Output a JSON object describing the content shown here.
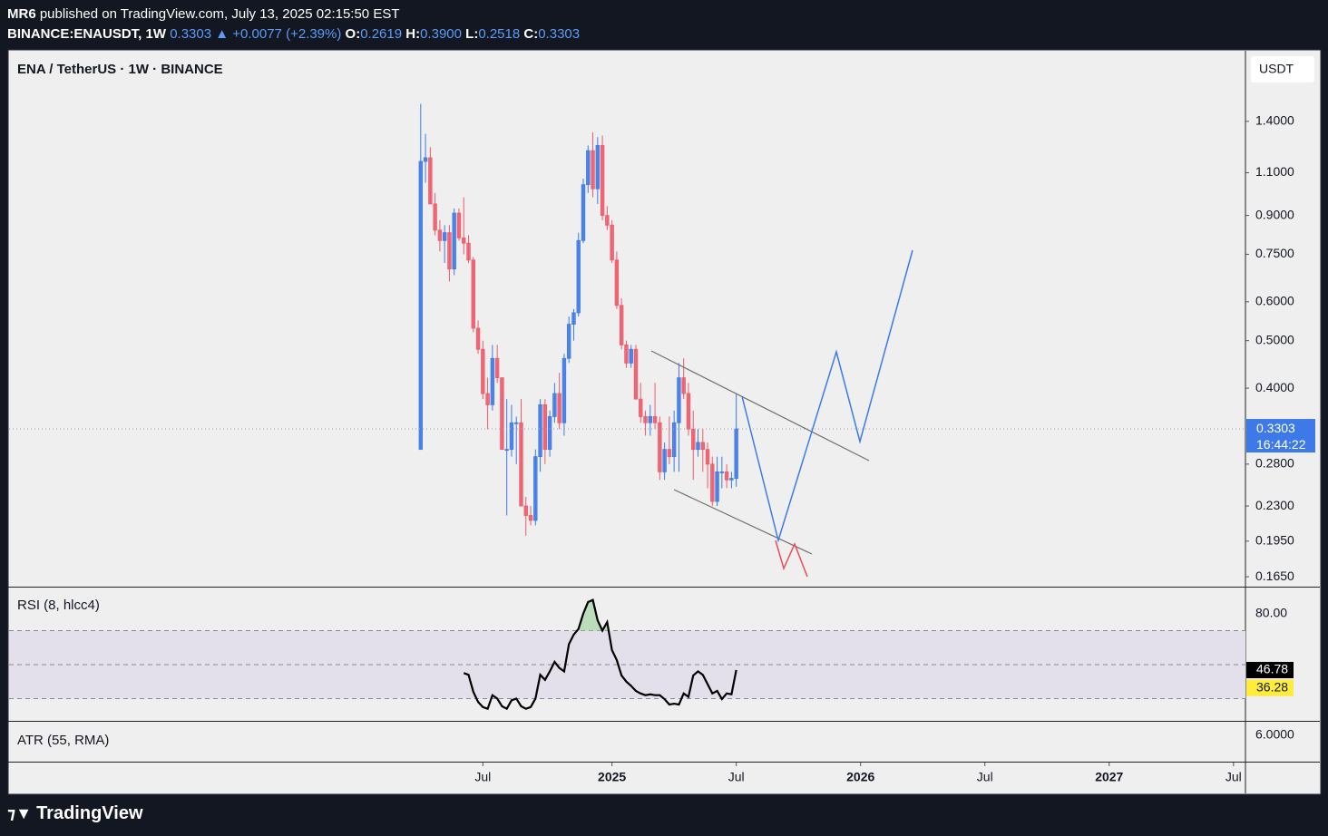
{
  "header": {
    "author": "MR6",
    "published": "published on TradingView.com, July 13, 2025 02:15:50 EST",
    "symbol": "BINANCE:ENAUSDT, 1W",
    "last": "0.3303",
    "change": "▲ +0.0077 (+2.39%)",
    "ohlc": [
      {
        "label": "O:",
        "value": "0.2619"
      },
      {
        "label": "H:",
        "value": "0.3900"
      },
      {
        "label": "L:",
        "value": "0.2518"
      },
      {
        "label": "C:",
        "value": "0.3303"
      }
    ]
  },
  "chart_data": {
    "type": "candlestick",
    "title": "ENA / TetherUS · 1W · BINANCE",
    "currency": "USDT",
    "countdown": "16:44:22",
    "log_scale": true,
    "up_color": "#3d7ae8",
    "down_color": "#ee5a6a",
    "open": [
      0.3,
      1.16,
      1.18,
      0.95,
      0.84,
      0.8,
      0.83,
      0.7,
      0.91,
      0.81,
      0.79,
      0.73,
      0.53,
      0.48,
      0.39,
      0.37,
      0.46,
      0.42,
      0.3,
      0.3,
      0.34,
      0.34,
      0.23,
      0.22,
      0.215,
      0.29,
      0.37,
      0.3,
      0.35,
      0.39,
      0.34,
      0.46,
      0.54,
      0.57,
      0.8,
      1.04,
      1.22,
      1.02,
      1.25,
      0.9,
      0.86,
      0.73,
      0.59,
      0.49,
      0.45,
      0.48,
      0.38,
      0.35,
      0.34,
      0.35,
      0.34,
      0.27,
      0.3,
      0.29,
      0.34,
      0.42,
      0.39,
      0.33,
      0.3,
      0.31,
      0.3,
      0.28,
      0.235,
      0.27,
      0.27,
      0.26,
      0.2619
    ],
    "high": [
      1.52,
      1.32,
      1.24,
      1.0,
      0.88,
      0.86,
      0.86,
      0.93,
      0.93,
      0.98,
      0.82,
      0.74,
      0.55,
      0.5,
      0.42,
      0.49,
      0.49,
      0.42,
      0.38,
      0.37,
      0.35,
      0.38,
      0.24,
      0.23,
      0.3,
      0.38,
      0.38,
      0.36,
      0.41,
      0.43,
      0.47,
      0.56,
      0.58,
      0.83,
      1.07,
      1.25,
      1.33,
      1.3,
      1.31,
      0.94,
      0.88,
      0.76,
      0.61,
      0.5,
      0.49,
      0.49,
      0.41,
      0.36,
      0.37,
      0.41,
      0.35,
      0.31,
      0.35,
      0.36,
      0.45,
      0.46,
      0.41,
      0.36,
      0.33,
      0.33,
      0.31,
      0.29,
      0.29,
      0.29,
      0.28,
      0.27,
      0.39
    ],
    "low": [
      0.3,
      1.05,
      0.95,
      0.82,
      0.76,
      0.72,
      0.66,
      0.68,
      0.8,
      0.75,
      0.72,
      0.52,
      0.47,
      0.38,
      0.33,
      0.36,
      0.41,
      0.3,
      0.22,
      0.29,
      0.28,
      0.23,
      0.2,
      0.21,
      0.21,
      0.27,
      0.28,
      0.29,
      0.34,
      0.33,
      0.32,
      0.45,
      0.5,
      0.56,
      0.79,
      1.0,
      0.98,
      0.95,
      0.88,
      0.84,
      0.72,
      0.58,
      0.48,
      0.44,
      0.44,
      0.38,
      0.34,
      0.32,
      0.32,
      0.33,
      0.26,
      0.26,
      0.28,
      0.27,
      0.27,
      0.38,
      0.32,
      0.26,
      0.29,
      0.27,
      0.25,
      0.23,
      0.23,
      0.25,
      0.25,
      0.25,
      0.2518
    ],
    "close": [
      1.16,
      1.18,
      0.95,
      0.84,
      0.8,
      0.83,
      0.7,
      0.91,
      0.81,
      0.79,
      0.73,
      0.53,
      0.48,
      0.39,
      0.37,
      0.46,
      0.42,
      0.3,
      0.3,
      0.34,
      0.34,
      0.23,
      0.22,
      0.215,
      0.29,
      0.37,
      0.3,
      0.35,
      0.39,
      0.34,
      0.46,
      0.54,
      0.57,
      0.8,
      1.04,
      1.22,
      1.02,
      1.25,
      0.9,
      0.86,
      0.73,
      0.59,
      0.49,
      0.45,
      0.48,
      0.38,
      0.35,
      0.34,
      0.35,
      0.34,
      0.27,
      0.3,
      0.29,
      0.34,
      0.42,
      0.39,
      0.33,
      0.3,
      0.31,
      0.3,
      0.28,
      0.235,
      0.27,
      0.27,
      0.26,
      0.2619,
      0.3303
    ],
    "xlim": [
      -86.1,
      172.5
    ],
    "xticks": [
      {
        "value": 13,
        "label": "Jul"
      },
      {
        "value": 40,
        "label": "2025"
      },
      {
        "value": 66,
        "label": "Jul"
      },
      {
        "value": 92,
        "label": "2026"
      },
      {
        "value": 118,
        "label": "Jul"
      },
      {
        "value": 144,
        "label": "2027"
      },
      {
        "value": 170,
        "label": "Jul"
      }
    ],
    "ylim": [
      0.1575,
      1.95
    ],
    "yticks": [
      {
        "value": 1.4,
        "label": "1.4000"
      },
      {
        "value": 1.1,
        "label": "1.1000"
      },
      {
        "value": 0.9,
        "label": "0.9000"
      },
      {
        "value": 0.75,
        "label": "0.7500"
      },
      {
        "value": 0.6,
        "label": "0.6000"
      },
      {
        "value": 0.5,
        "label": "0.5000"
      },
      {
        "value": 0.4,
        "label": "0.4000"
      },
      {
        "value": 0.28,
        "label": "0.2800"
      },
      {
        "value": 0.23,
        "label": "0.2300"
      },
      {
        "value": 0.195,
        "label": "0.1950"
      },
      {
        "value": 0.165,
        "label": "0.1650"
      }
    ],
    "rsi": {
      "title": "RSI (8, hlcc4)",
      "color": "#000000",
      "values": [
        null,
        null,
        null,
        null,
        null,
        null,
        null,
        null,
        null,
        45,
        44,
        34,
        28,
        25,
        24,
        32,
        30,
        25.5,
        24,
        29,
        30,
        25.5,
        24,
        25,
        30,
        44,
        41,
        46,
        51.6,
        48,
        46,
        62,
        67.6,
        71,
        80,
        86.8,
        88,
        76,
        70,
        75,
        58.5,
        52.7,
        43.6,
        40,
        37.5,
        34.5,
        33,
        32,
        32.5,
        32,
        32,
        29.7,
        26.5,
        27,
        26.5,
        33,
        31,
        43.6,
        46,
        44,
        38.5,
        33,
        34.5,
        29.7,
        33,
        32.5,
        46.78
      ],
      "ma": 36.28,
      "ylim": [
        16.9,
        95.3
      ],
      "yticks": [
        {
          "value": 80,
          "label": "80.00"
        }
      ],
      "bands": [
        70,
        50,
        30
      ]
    },
    "atr": {
      "title": "ATR (55, RMA)",
      "ytick": "6.0000"
    }
  },
  "footer": {
    "brand": "TradingView"
  }
}
